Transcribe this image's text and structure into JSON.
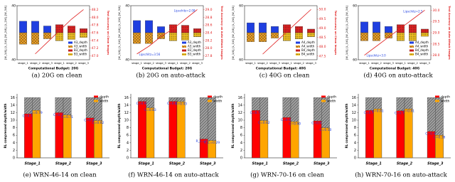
{
  "chart_data": [
    {
      "type": "bar_line",
      "caption": "(a)  20G on clean",
      "xlabel": "Computational Budget: 20G",
      "ylabel": "[W_1/4], [L_1/4], [W_2/4], [L_2/4], [W_3/4]",
      "y2label": "Test Accuracy on Clean Images",
      "categories": [
        "stage_1",
        "stage_2",
        "stage_3",
        "stage_1",
        "stage_2",
        "stage_3"
      ],
      "ylim": [
        -40,
        40
      ],
      "yticks": [
        40,
        {
          "value": -40,
          "label": "40"
        }
      ],
      "y2lim": [
        46.9,
        48.3
      ],
      "y2ticks": [
        48.2,
        {
          "value": 48,
          "label": "48.0"
        },
        47.8,
        47.6,
        47.4,
        47.2,
        {
          "value": 47,
          "label": "47.0"
        }
      ],
      "series": [
        {
          "name": "A3_depth",
          "color": "#1f3fe0",
          "values": [
            17,
            17,
            10,
            null,
            null,
            null
          ]
        },
        {
          "name": "A3_width",
          "color": "#f0a020",
          "pattern": "cross",
          "values": [
            -17,
            -17,
            -9,
            null,
            null,
            null
          ]
        },
        {
          "name": "B3_depth",
          "color": "#e02020",
          "pattern": "dots",
          "values": [
            null,
            null,
            null,
            12,
            10,
            6
          ]
        },
        {
          "name": "B3_width",
          "color": "#f0c020",
          "pattern": "dots",
          "values": [
            null,
            null,
            null,
            -12,
            -10,
            -7
          ]
        },
        {
          "axis": "y2",
          "color": "#e02020",
          "values": [
            null,
            47.05,
            47.35,
            47.65,
            47.95,
            48.2
          ]
        }
      ]
    },
    {
      "type": "bar_line",
      "caption": "(b)  20G on auto-attack",
      "xlabel": "Computational Budget: 20G",
      "ylabel": "[W_1/4], [L_1/4], [W_2/4], [L_2/4], [W_3/4]",
      "y2label": "Test Accuracy on Auto-Attack Images",
      "categories": [
        "stage_1",
        "stage_2",
        "stage_3",
        "stage_1",
        "stage_2",
        "stage_3"
      ],
      "ylim": [
        -40,
        40
      ],
      "yticks": [
        40,
        {
          "value": -40,
          "label": "40"
        }
      ],
      "y2lim": [
        27.7,
        29.1
      ],
      "y2ticks": [
        {
          "value": 29,
          "label": "29.0"
        },
        28.8,
        28.6,
        28.4,
        28.2,
        {
          "value": 28,
          "label": "28.0"
        },
        27.8
      ],
      "annotations": [
        "Lipschitz=3.56",
        "Lipschitz=2.08"
      ],
      "series": [
        {
          "name": "A3_depth",
          "color": "#1f3fe0",
          "values": [
            18,
            18,
            9,
            null,
            null,
            null
          ]
        },
        {
          "name": "A3_width",
          "color": "#f0a020",
          "pattern": "cross",
          "values": [
            -16,
            -16,
            -9,
            null,
            null,
            null
          ]
        },
        {
          "name": "B3_depth",
          "color": "#e02020",
          "pattern": "dots",
          "values": [
            null,
            null,
            null,
            12,
            11,
            6
          ]
        },
        {
          "name": "B3_width",
          "color": "#f0c020",
          "pattern": "dots",
          "values": [
            null,
            null,
            null,
            -12,
            -11,
            -6
          ]
        },
        {
          "axis": "y2",
          "color": "#e02020",
          "values": [
            27.85,
            28.05,
            28.3,
            28.5,
            28.75,
            29.0
          ]
        }
      ]
    },
    {
      "type": "bar_line",
      "caption": "(c)  40G on clean",
      "xlabel": "Computational Budget: 40G",
      "ylabel": "[W_1/4], [L_1/4], [W_2/4], [L_2/4], [W_3/4]",
      "y2label": "Test Accuracy on Clean Images",
      "categories": [
        "stage_1",
        "stage_2",
        "stage_3",
        "stage_1",
        "stage_2",
        "stage_3"
      ],
      "ylim": [
        -60,
        60
      ],
      "yticks": [
        60,
        {
          "value": -60,
          "label": "60"
        }
      ],
      "y2lim": [
        47.3,
        50.2
      ],
      "y2ticks": [
        {
          "value": 50,
          "label": "50.0"
        },
        49.5,
        {
          "value": 49,
          "label": "49.0"
        },
        48.5,
        {
          "value": 48,
          "label": "48.0"
        },
        47.5
      ],
      "series": [
        {
          "name": "A4_depth",
          "color": "#1f3fe0",
          "values": [
            22,
            22,
            14,
            null,
            null,
            null
          ]
        },
        {
          "name": "A4_width",
          "color": "#f0a020",
          "pattern": "cross",
          "values": [
            -20,
            -20,
            -12,
            null,
            null,
            null
          ]
        },
        {
          "name": "B4_depth",
          "color": "#e02020",
          "pattern": "dots",
          "values": [
            null,
            null,
            null,
            18,
            14,
            8
          ]
        },
        {
          "name": "B4_width",
          "color": "#f0c020",
          "pattern": "dots",
          "values": [
            null,
            null,
            null,
            -18,
            -14,
            -9
          ]
        },
        {
          "axis": "y2",
          "color": "#e02020",
          "values": [
            null,
            47.6,
            48.2,
            48.8,
            49.4,
            50.0
          ]
        }
      ]
    },
    {
      "type": "bar_line",
      "caption": "(d)  40G on auto-attack",
      "xlabel": "Computational Budget: 40G",
      "ylabel": "[W_1/4], [L_1/4], [W_2/4], [L_2/4], [W_3/4]",
      "y2label": "Test Accuracy on Auto-Attack Images",
      "categories": [
        "stage_1",
        "stage_2",
        "stage_3",
        "stage_1",
        "stage_2",
        "stage_3"
      ],
      "ylim": [
        -60,
        60
      ],
      "yticks": [
        60,
        {
          "value": -60,
          "label": "60"
        }
      ],
      "y2lim": [
        27.8,
        30.2
      ],
      "y2ticks": [
        {
          "value": 30,
          "label": "30.0"
        },
        29.5,
        {
          "value": 29,
          "label": "29.0"
        },
        28.5,
        {
          "value": 28,
          "label": "28.0"
        }
      ],
      "annotations": [
        "Lipschitz=3.0",
        "Lipschitz=2.5"
      ],
      "series": [
        {
          "name": "A4_depth",
          "color": "#1f3fe0",
          "values": [
            24,
            24,
            14,
            null,
            null,
            null
          ]
        },
        {
          "name": "A4_width",
          "color": "#f0a020",
          "pattern": "cross",
          "values": [
            -18,
            -18,
            -12,
            null,
            null,
            null
          ]
        },
        {
          "name": "B4_depth",
          "color": "#e02020",
          "pattern": "dots",
          "values": [
            null,
            null,
            null,
            18,
            18,
            8
          ]
        },
        {
          "name": "B4_width",
          "color": "#f0c020",
          "pattern": "dots",
          "values": [
            null,
            null,
            null,
            -18,
            -18,
            -8
          ]
        },
        {
          "axis": "y2",
          "color": "#e02020",
          "values": [
            28.0,
            28.4,
            28.8,
            29.2,
            29.6,
            30.0
          ]
        }
      ]
    },
    {
      "type": "grouped_bar",
      "caption": "(e)  WRN-46-14 on clean",
      "ylabel": "RL compressed depth/width",
      "categories": [
        "Stage_1",
        "Stage_2",
        "Stage_3"
      ],
      "ylim": [
        0,
        17
      ],
      "yticks": [
        0,
        2,
        4,
        6,
        8,
        10,
        12,
        14,
        16
      ],
      "series": [
        {
          "color": "#a0a0a0",
          "pattern": "hatch",
          "values": [
            16,
            16,
            16
          ]
        },
        {
          "name": "depth",
          "color": "#ff0000",
          "values": [
            11.7,
            12,
            10.6
          ],
          "point_labels": [
            "C=0.73",
            "C=0.75",
            "C=0.66"
          ]
        },
        {
          "name": "width",
          "color": "#ffa500",
          "values": [
            12.6,
            11.4,
            9.9
          ],
          "point_labels": [
            "C=0.79",
            "C=0.71",
            "C=0.62"
          ]
        }
      ]
    },
    {
      "type": "grouped_bar",
      "caption": "(f)  WRN-46-14 on auto-attack",
      "ylabel": "RL compressed depth/width",
      "categories": [
        "Stage_1",
        "Stage_2",
        "Stage_3"
      ],
      "ylim": [
        0,
        17
      ],
      "yticks": [
        0,
        2,
        4,
        6,
        8,
        10,
        12,
        14,
        16
      ],
      "series": [
        {
          "color": "#a0a0a0",
          "pattern": "hatch",
          "values": [
            16,
            16,
            16
          ]
        },
        {
          "name": "depth",
          "color": "#ff0000",
          "values": [
            15,
            15,
            5
          ],
          "point_labels": [
            "C=0.94",
            "C=0.94",
            "R_C=0.31"
          ]
        },
        {
          "name": "width",
          "color": "#ffa500",
          "values": [
            13.3,
            14.9,
            4.6
          ],
          "point_labels": [
            "C=0.83",
            "C=0.93",
            "R_C=0.29"
          ]
        }
      ]
    },
    {
      "type": "grouped_bar",
      "caption": "(g)  WRN-70-16 on clean",
      "ylabel": "RL compressed depth/width",
      "categories": [
        "Stage_1",
        "Stage_2",
        "Stage_3"
      ],
      "ylim": [
        0,
        17
      ],
      "yticks": [
        0,
        2,
        4,
        6,
        8,
        10,
        12,
        14,
        16
      ],
      "series": [
        {
          "color": "#a0a0a0",
          "pattern": "hatch",
          "values": [
            16,
            16,
            16
          ]
        },
        {
          "name": "depth",
          "color": "#ff0000",
          "values": [
            12.6,
            10.7,
            9.8
          ],
          "point_labels": [
            "C=0.79",
            "C=0.67",
            "C=0.61"
          ]
        },
        {
          "name": "width",
          "color": "#ffa500",
          "values": [
            9.9,
            9.6,
            8
          ],
          "point_labels": [
            "C=0.62",
            "C=0.60",
            "C=0.50"
          ]
        }
      ]
    },
    {
      "type": "grouped_bar",
      "caption": "(h)  WRN-70-16 on auto-attack",
      "ylabel": "RL compressed depth/width",
      "categories": [
        "Stage_1",
        "Stage_2",
        "Stage_3"
      ],
      "ylim": [
        0,
        17
      ],
      "yticks": [
        0,
        2,
        4,
        6,
        8,
        10,
        12,
        14,
        16
      ],
      "series": [
        {
          "color": "#a0a0a0",
          "pattern": "hatch",
          "values": [
            16,
            16,
            16
          ]
        },
        {
          "name": "depth",
          "color": "#ff0000",
          "values": [
            12.6,
            12.5,
            7
          ],
          "point_labels": [
            "C=0.79",
            "C=0.78",
            "C=0.44"
          ]
        },
        {
          "name": "width",
          "color": "#ffa500",
          "values": [
            13,
            13,
            6
          ],
          "point_labels": [
            "C=0.81",
            "C=0.81",
            "C=0.38"
          ]
        }
      ]
    }
  ]
}
